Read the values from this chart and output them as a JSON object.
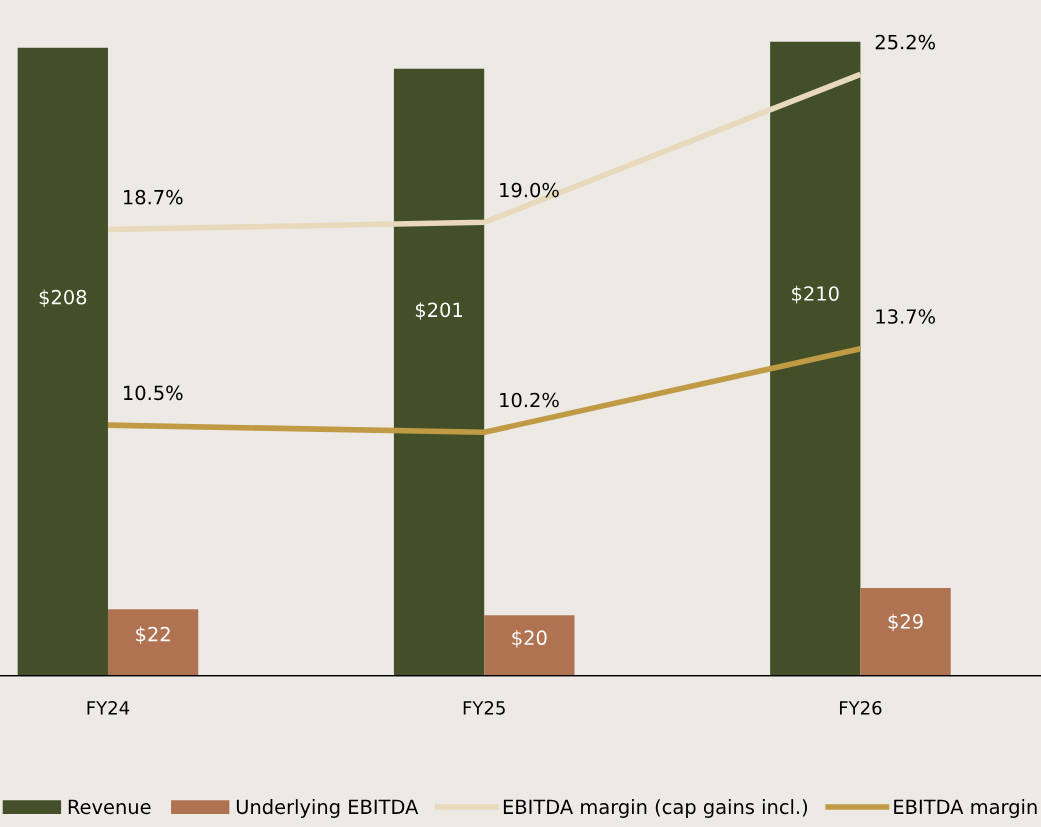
{
  "chart_data": {
    "type": "bar",
    "categories": [
      "FY24",
      "FY25",
      "FY26"
    ],
    "series": [
      {
        "name": "Revenue",
        "color": "#434f28",
        "values": [
          208,
          201,
          210
        ],
        "value_labels": [
          "$208",
          "$201",
          "$210"
        ]
      },
      {
        "name": "Underlying EBITDA",
        "color": "#b07352",
        "values": [
          22,
          20,
          29
        ],
        "value_labels": [
          "$22",
          "$20",
          "$29"
        ]
      },
      {
        "name": "EBITDA margin (cap gains incl.)",
        "type": "line",
        "axis": "y2",
        "color": "#e8d9bd",
        "values": [
          18.7,
          19.0,
          25.2
        ],
        "value_labels": [
          "18.7%",
          "19.0%",
          "25.2%"
        ]
      },
      {
        "name": "EBITDA margin",
        "type": "line",
        "axis": "y2",
        "color": "#c09a45",
        "values": [
          10.5,
          10.2,
          13.7
        ],
        "value_labels": [
          "10.5%",
          "10.2%",
          "13.7%"
        ]
      }
    ],
    "tick_labels": "x",
    "legend": "bottom",
    "grid": false
  }
}
